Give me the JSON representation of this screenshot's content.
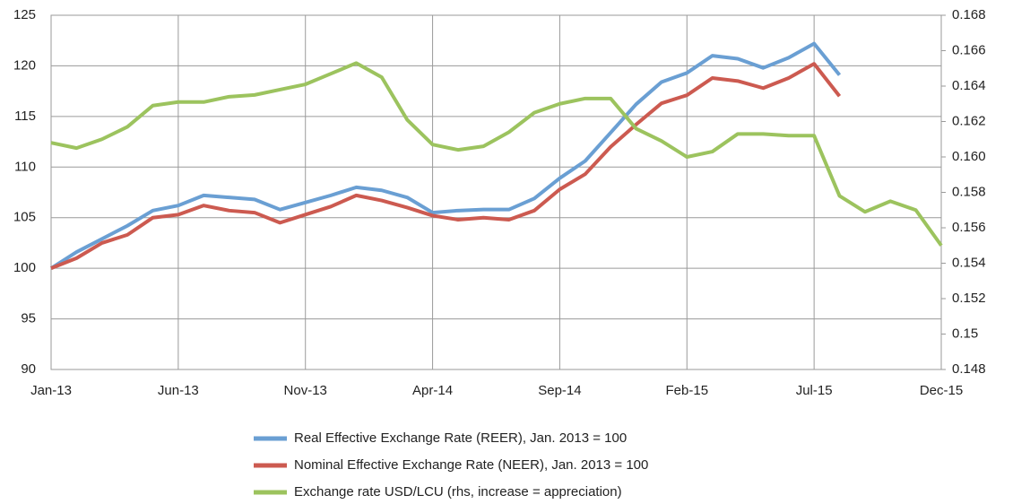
{
  "chart_data": {
    "type": "line",
    "categories": [
      "Jan-13",
      null,
      null,
      null,
      null,
      "Jun-13",
      null,
      null,
      null,
      null,
      "Nov-13",
      null,
      null,
      null,
      null,
      "Apr-14",
      null,
      null,
      null,
      null,
      "Sep-14",
      null,
      null,
      null,
      null,
      "Feb-15",
      null,
      null,
      null,
      null,
      "Jul-15",
      null,
      null,
      null,
      null,
      "Dec-15"
    ],
    "series": [
      {
        "name": "Real Effective Exchange Rate (REER), Jan. 2013 = 100",
        "color": "#6a9fd3",
        "values": [
          100,
          101.6,
          102.9,
          104.2,
          105.7,
          106.2,
          107.2,
          107.0,
          106.8,
          105.8,
          106.5,
          107.2,
          108.0,
          107.7,
          107.0,
          105.5,
          105.7,
          105.8,
          105.8,
          106.9,
          108.9,
          110.6,
          113.4,
          116.2,
          118.4,
          119.3,
          121.0,
          120.7,
          119.8,
          120.8,
          122.2,
          119.1,
          null,
          null,
          null,
          null
        ]
      },
      {
        "name": "Nominal Effective Exchange Rate (NEER), Jan. 2013 = 100",
        "color": "#cc5a50",
        "values": [
          100,
          101.0,
          102.5,
          103.3,
          105.0,
          105.3,
          106.2,
          105.7,
          105.5,
          104.5,
          105.3,
          106.1,
          107.2,
          106.7,
          106.0,
          105.2,
          104.8,
          105.0,
          104.8,
          105.7,
          107.8,
          109.3,
          112.0,
          114.2,
          116.3,
          117.1,
          118.8,
          118.5,
          117.8,
          118.8,
          120.2,
          117.0,
          null,
          null,
          null,
          null
        ]
      },
      {
        "name": "Exchange rate USD/LCU (rhs, increase = appreciation)",
        "color": "#9cc35e",
        "axis": "y2",
        "values": [
          0.1608,
          0.1605,
          0.161,
          0.1617,
          0.1629,
          0.1631,
          0.1631,
          0.1634,
          0.1635,
          0.1638,
          0.1641,
          0.1647,
          0.1653,
          0.1645,
          0.1621,
          0.1607,
          0.1604,
          0.1606,
          0.1614,
          0.1625,
          0.163,
          0.1633,
          0.1633,
          0.1616,
          0.1609,
          0.16,
          0.1603,
          0.1613,
          0.1613,
          0.1612,
          0.1612,
          0.1578,
          0.1569,
          0.1575,
          0.157,
          0.155
        ]
      }
    ],
    "ylim": [
      90,
      125
    ],
    "yticks": [
      90,
      95,
      100,
      105,
      110,
      115,
      120,
      125
    ],
    "y2lim": [
      0.148,
      0.168
    ],
    "y2ticks": [
      0.148,
      0.15,
      0.152,
      0.154,
      0.156,
      0.158,
      {
        "value": 0.16,
        "label": "0.160"
      },
      0.162,
      0.164,
      0.166,
      0.168
    ],
    "grid": true,
    "legend": "bottom"
  }
}
